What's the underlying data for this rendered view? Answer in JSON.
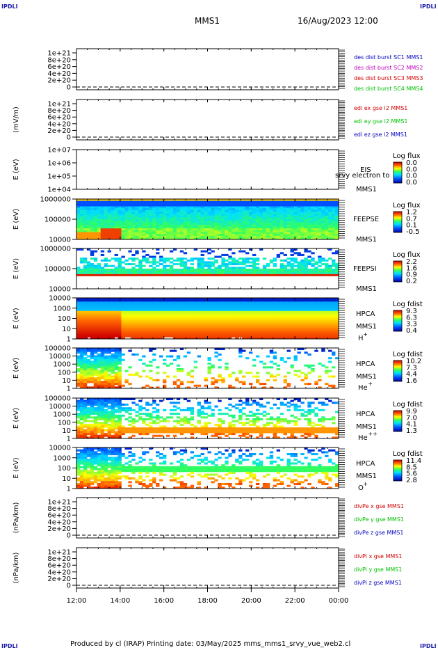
{
  "corners": {
    "tl": "IPDLI",
    "tr": "IPDLI",
    "bl": "IPDLI",
    "br": "IPDLI"
  },
  "header": {
    "spacecraft": "MMS1",
    "datetime": "16/Aug/2023 12:00"
  },
  "footer": {
    "text": "Produced by cl (IRAP)   Printing date: 03/May/2025   mms_mms1_srvy_vue_web2.cl"
  },
  "colors": {
    "c1": "#0000c0",
    "c2": "#c000c0",
    "c3": "#d00000",
    "c4": "#00c000"
  },
  "chart_data": [
    {
      "type": "line",
      "name": "des-dist",
      "ylabel": "",
      "yticks": [
        "1e+21",
        "8e+20",
        "6e+20",
        "4e+20",
        "2e+20",
        "0"
      ],
      "legend": [
        {
          "text": "des dist burst SC1 MMS1",
          "color": "#0000c0"
        },
        {
          "text": "des dist burst SC2 MMS2",
          "color": "#c000c0"
        },
        {
          "text": "des dist burst SC3 MMS3",
          "color": "#d00000"
        },
        {
          "text": "des dist burst SC4 MMS4",
          "color": "#00c000"
        }
      ]
    },
    {
      "type": "line",
      "name": "edi-e",
      "ylabel": "(mV/m)",
      "yticks": [
        "1e+21",
        "8e+20",
        "6e+20",
        "4e+20",
        "2e+20",
        "0"
      ],
      "legend": [
        {
          "text": "edi ex gse l2 MMS1",
          "color": "#d00000"
        },
        {
          "text": "edi ey gse l2 MMS1",
          "color": "#00c000"
        },
        {
          "text": "edi ez gse l2 MMS1",
          "color": "#0000c0"
        }
      ]
    },
    {
      "type": "heatmap",
      "name": "eis",
      "ylabel": "E (eV)",
      "yticks": [
        "1e+07",
        "1e+06",
        "1e+05",
        "1e+04"
      ],
      "labels": [
        "EIS",
        "MMS1"
      ],
      "overlay": "srvy electron to",
      "cbar_title": "Log flux",
      "cbar": [
        "0.0",
        "0.0",
        "0.0",
        "0.0"
      ],
      "empty": true
    },
    {
      "type": "heatmap",
      "name": "feepse",
      "ylabel": "E (eV)",
      "yticks": [
        "1000000",
        "100000",
        "10000"
      ],
      "labels": [
        "FEEPSE",
        "MMS1"
      ],
      "cbar_title": "Log flux",
      "cbar": [
        "1.2",
        "0.7",
        "0.1",
        "-0.5"
      ]
    },
    {
      "type": "heatmap",
      "name": "feepsi",
      "ylabel": "E (eV)",
      "yticks": [
        "1000000",
        "100000",
        "10000"
      ],
      "labels": [
        "FEEPSI",
        "MMS1"
      ],
      "cbar_title": "Log flux",
      "cbar": [
        "2.2",
        "1.6",
        "0.9",
        "0.2"
      ]
    },
    {
      "type": "heatmap",
      "name": "hpca-h",
      "ylabel": "E (eV)",
      "yticks": [
        "10000",
        "1000",
        "100",
        "10",
        "1"
      ],
      "labels": [
        "HPCA",
        "MMS1"
      ],
      "species": "H",
      "sup": "+",
      "cbar_title": "Log fdist",
      "cbar": [
        "9.3",
        "6.3",
        "3.3",
        "0.4"
      ]
    },
    {
      "type": "heatmap",
      "name": "hpca-he",
      "ylabel": "E (eV)",
      "yticks": [
        "100000",
        "10000",
        "1000",
        "100",
        "10",
        "1"
      ],
      "labels": [
        "HPCA",
        "MMS1"
      ],
      "species": "He",
      "sup": "+",
      "cbar_title": "Log fdist",
      "cbar": [
        "10.2",
        "7.3",
        "4.4",
        "1.6"
      ]
    },
    {
      "type": "heatmap",
      "name": "hpca-hepp",
      "ylabel": "E (eV)",
      "yticks": [
        "100000",
        "10000",
        "1000",
        "100",
        "10",
        "1"
      ],
      "labels": [
        "HPCA",
        "MMS1"
      ],
      "species": "He",
      "sup": "++",
      "cbar_title": "Log fdist",
      "cbar": [
        "9.9",
        "7.0",
        "4.1",
        "1.3"
      ]
    },
    {
      "type": "heatmap",
      "name": "hpca-o",
      "ylabel": "E (eV)",
      "yticks": [
        "10000",
        "1000",
        "100",
        "10",
        "1"
      ],
      "labels": [
        "HPCA",
        "MMS1"
      ],
      "species": "O",
      "sup": "+",
      "cbar_title": "Log fdist",
      "cbar": [
        "11.4",
        "8.5",
        "5.6",
        "2.8"
      ]
    },
    {
      "type": "line",
      "name": "divpe",
      "ylabel": "(nPa/km)",
      "yticks": [
        "1e+21",
        "8e+20",
        "6e+20",
        "4e+20",
        "2e+20",
        "0"
      ],
      "legend": [
        {
          "text": "divPe x gse MMS1",
          "color": "#d00000"
        },
        {
          "text": "divPe y gse MMS1",
          "color": "#00c000"
        },
        {
          "text": "divPe z gse MMS1",
          "color": "#0000c0"
        }
      ]
    },
    {
      "type": "line",
      "name": "divpi",
      "ylabel": "(nPa/km)",
      "yticks": [
        "1e+21",
        "8e+20",
        "6e+20",
        "4e+20",
        "2e+20",
        "0"
      ],
      "legend": [
        {
          "text": "divPi x gse MMS1",
          "color": "#d00000"
        },
        {
          "text": "divPi y gse MMS1",
          "color": "#00c000"
        },
        {
          "text": "divPi z gse MMS1",
          "color": "#0000c0"
        }
      ]
    }
  ],
  "xaxis": {
    "ticks": [
      "12:00",
      "14:00",
      "16:00",
      "18:00",
      "20:00",
      "22:00",
      "00:00"
    ]
  }
}
